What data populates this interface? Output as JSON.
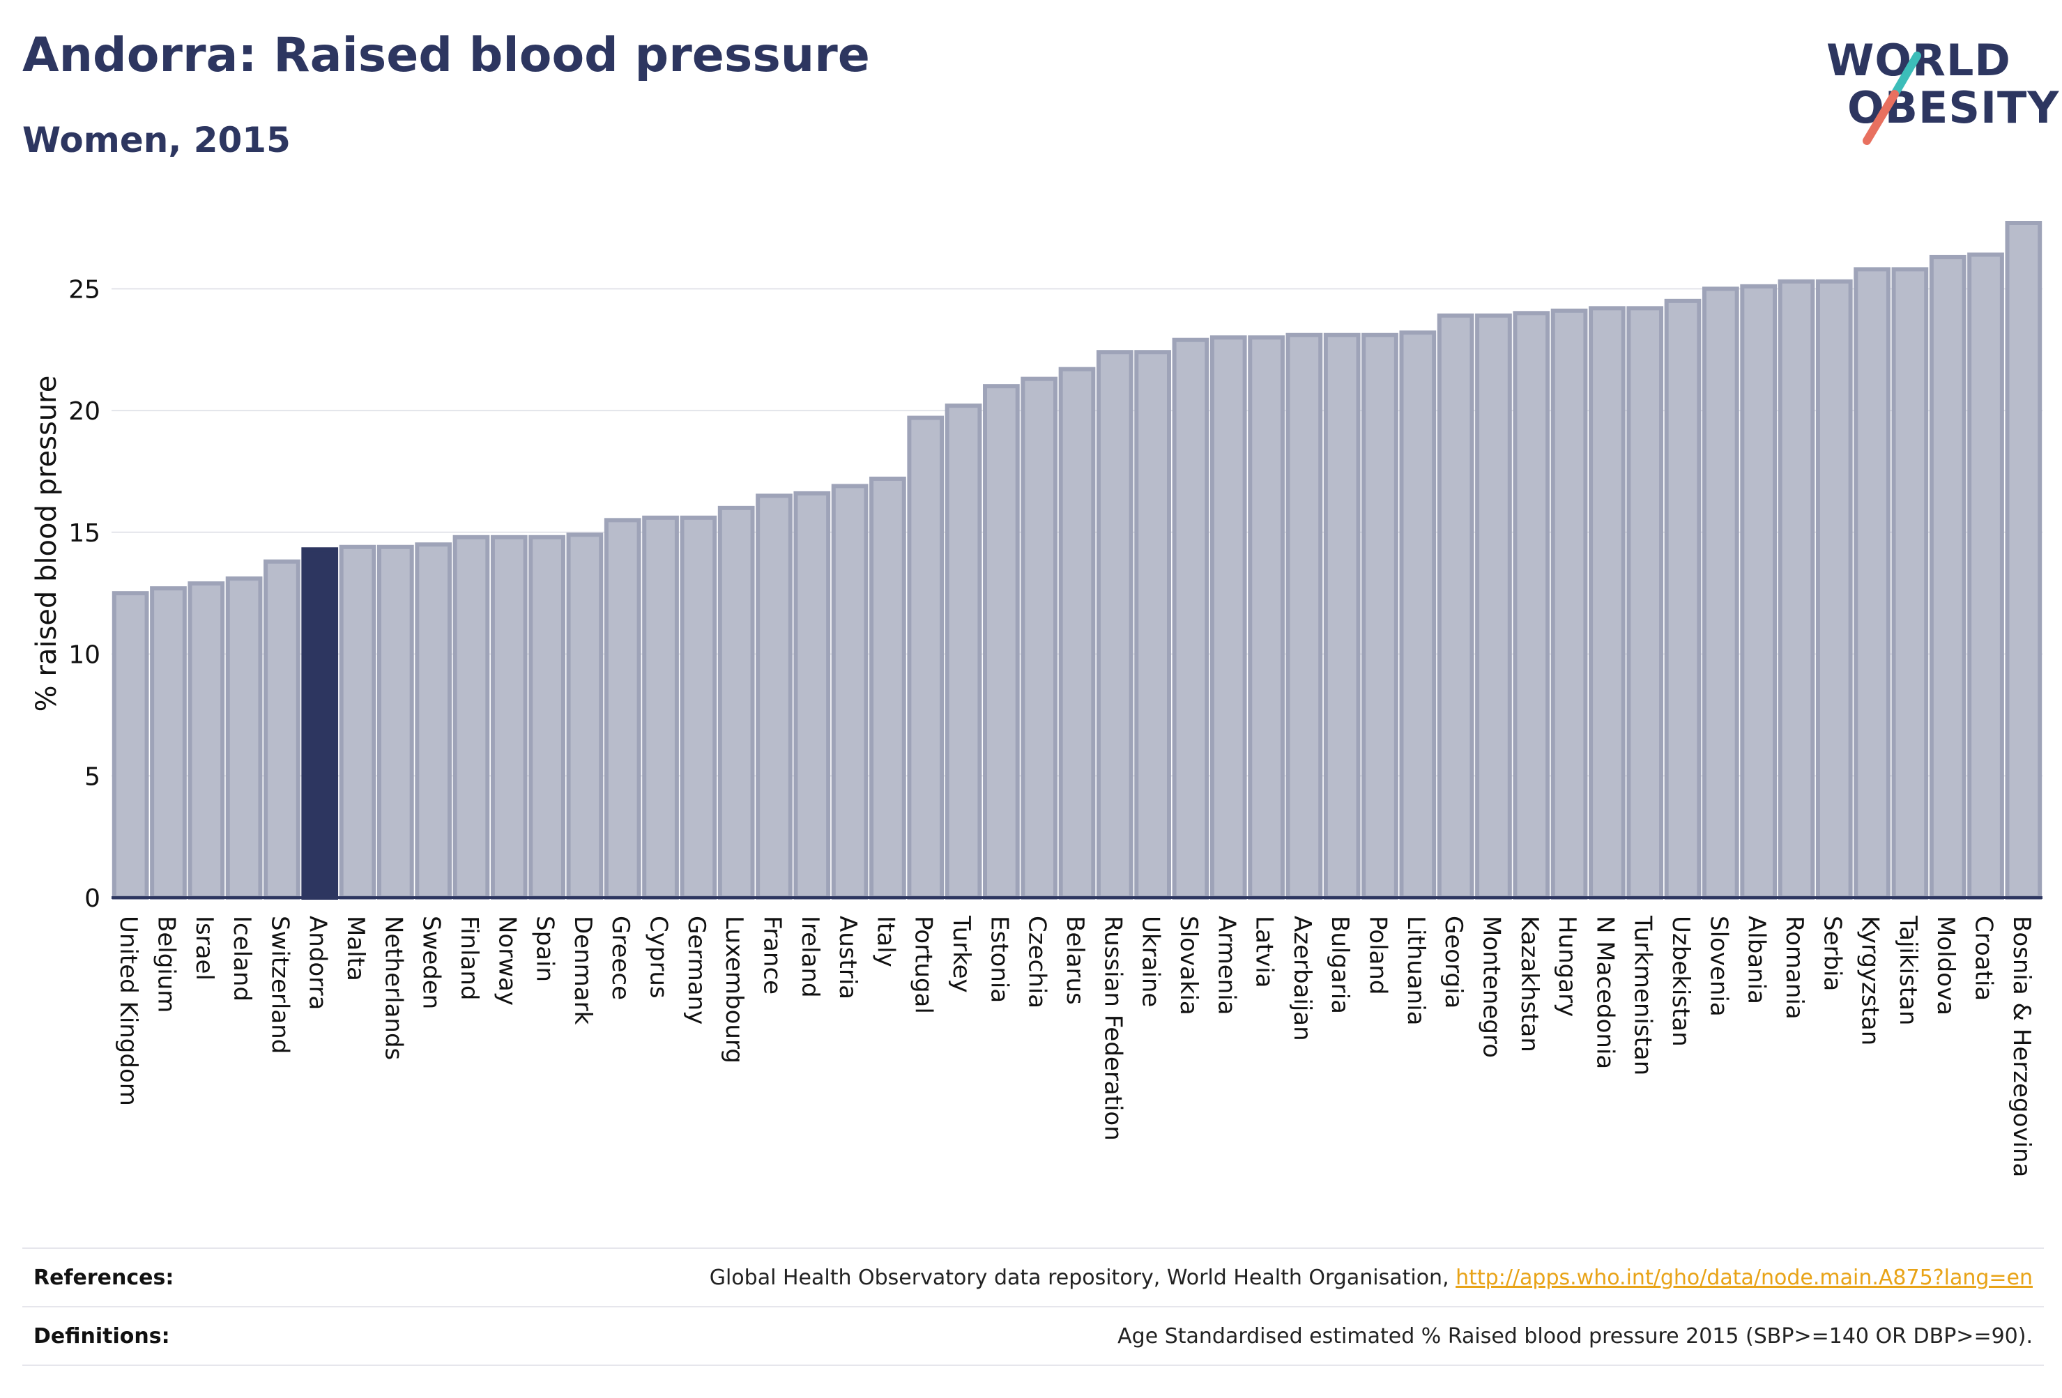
{
  "header": {
    "title": "Andorra: Raised blood pressure",
    "subtitle": "Women, 2015"
  },
  "logo": {
    "line1": "WORLD",
    "line2": "OBESITY",
    "colors": {
      "text": "#2d3660",
      "slash_teal": "#3cbdb9",
      "slash_red": "#e8705f"
    }
  },
  "chart_data": {
    "type": "bar",
    "ylabel": "% raised blood pressure",
    "ylim": [
      0,
      27.7
    ],
    "yticks": [
      0,
      5,
      10,
      15,
      20,
      25
    ],
    "grid": true,
    "highlight": "Andorra",
    "colors": {
      "bar": "#b8bccb",
      "bar_edge": "#9ea3b8",
      "highlight": "#2d3660"
    },
    "categories": [
      "United Kingdom",
      "Belgium",
      "Israel",
      "Iceland",
      "Switzerland",
      "Andorra",
      "Malta",
      "Netherlands",
      "Sweden",
      "Finland",
      "Norway",
      "Spain",
      "Denmark",
      "Greece",
      "Cyprus",
      "Germany",
      "Luxembourg",
      "France",
      "Ireland",
      "Austria",
      "Italy",
      "Portugal",
      "Turkey",
      "Estonia",
      "Czechia",
      "Belarus",
      "Russian Federation",
      "Ukraine",
      "Slovakia",
      "Armenia",
      "Latvia",
      "Azerbaijan",
      "Bulgaria",
      "Poland",
      "Lithuania",
      "Georgia",
      "Montenegro",
      "Kazakhstan",
      "Hungary",
      "N Macedonia",
      "Turkmenistan",
      "Uzbekistan",
      "Slovenia",
      "Albania",
      "Romania",
      "Serbia",
      "Kyrgyzstan",
      "Tajikistan",
      "Moldova",
      "Croatia",
      "Bosnia & Herzegovina"
    ],
    "values": [
      12.5,
      12.7,
      12.9,
      13.1,
      13.8,
      14.3,
      14.4,
      14.4,
      14.5,
      14.8,
      14.8,
      14.8,
      14.9,
      15.5,
      15.6,
      15.6,
      16.0,
      16.5,
      16.6,
      16.9,
      17.2,
      19.7,
      20.2,
      21.0,
      21.3,
      21.7,
      22.4,
      22.4,
      22.9,
      23.0,
      23.0,
      23.1,
      23.1,
      23.1,
      23.2,
      23.9,
      23.9,
      24.0,
      24.1,
      24.2,
      24.2,
      24.5,
      25.0,
      25.1,
      25.3,
      25.3,
      25.8,
      25.8,
      26.3,
      26.4,
      27.7
    ]
  },
  "footer": {
    "references_label": "References:",
    "references_text": "Global Health Observatory data repository, World Health Organisation, ",
    "references_link": "http://apps.who.int/gho/data/node.main.A875?lang=en",
    "definitions_label": "Definitions:",
    "definitions_text": "Age Standardised estimated % Raised blood pressure 2015 (SBP>=140 OR DBP>=90)."
  }
}
